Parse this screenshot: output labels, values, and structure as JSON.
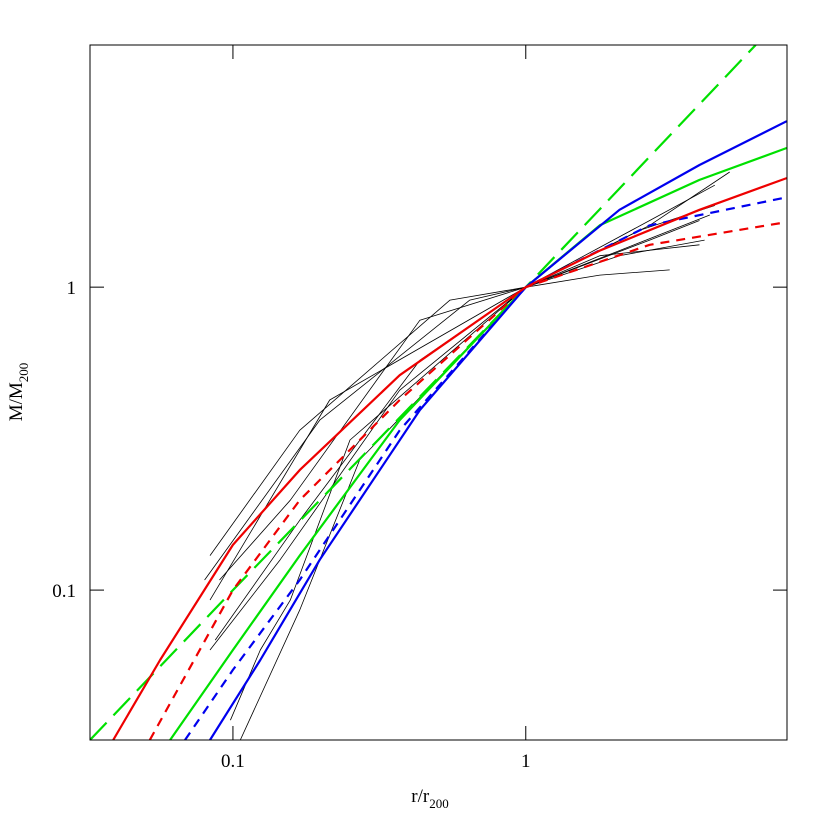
{
  "chart_data": {
    "type": "line",
    "x_label": "r/r",
    "x_label_sub": "200",
    "y_label": "M/M",
    "y_label_sub": "200",
    "xscale": "log",
    "yscale": "log",
    "grid": false,
    "xlim": [
      0.0325,
      7.8
    ],
    "ylim": [
      0.032,
      6.3
    ],
    "xticks": [
      0.1,
      1
    ],
    "yticks": [
      0.1,
      1
    ],
    "series": [
      {
        "color": "#000000",
        "style": "solid",
        "width": 0.8,
        "x": [
          0.0835,
          0.169,
          0.551,
          1,
          1.79,
          3.1
        ],
        "y": [
          0.13,
          0.337,
          0.906,
          1,
          1.096,
          1.14
        ]
      },
      {
        "color": "#000000",
        "style": "solid",
        "width": 0.8,
        "x": [
          0.08,
          0.198,
          0.644,
          1,
          2.09,
          4.08
        ],
        "y": [
          0.108,
          0.364,
          0.906,
          1,
          1.27,
          1.43
        ]
      },
      {
        "color": "#000000",
        "style": "solid",
        "width": 0.8,
        "x": [
          0.0835,
          0.214,
          1,
          2.65,
          4.97
        ],
        "y": [
          0.0927,
          0.424,
          1,
          1.6,
          2.4
        ]
      },
      {
        "color": "#000000",
        "style": "solid",
        "width": 0.8,
        "x": [
          0.106,
          0.169,
          0.271,
          1,
          2.45,
          4.42
        ],
        "y": [
          0.032,
          0.0859,
          0.269,
          1,
          1.54,
          1.86
        ]
      },
      {
        "color": "#000000",
        "style": "solid",
        "width": 0.8,
        "x": [
          0.098,
          0.124,
          0.157,
          0.251,
          1,
          2.65,
          4.42
        ],
        "y": [
          0.0372,
          0.0634,
          0.0927,
          0.313,
          1,
          1.66,
          2.17
        ]
      },
      {
        "color": "#000000",
        "style": "solid",
        "width": 0.8,
        "x": [
          0.087,
          0.169,
          0.435,
          1,
          2.09,
          4.25
        ],
        "y": [
          0.0684,
          0.17,
          0.574,
          1,
          1.32,
          1.73
        ]
      },
      {
        "color": "#000000",
        "style": "solid",
        "width": 0.8,
        "x": [
          0.09,
          0.157,
          0.435,
          1,
          1.79,
          3.92
        ],
        "y": [
          0.108,
          0.198,
          0.778,
          1,
          1.27,
          1.38
        ]
      },
      {
        "color": "#000000",
        "style": "solid",
        "width": 0.8,
        "x": [
          0.0835,
          0.145,
          0.371,
          1,
          2.65,
          3.92
        ],
        "y": [
          0.0634,
          0.126,
          0.457,
          1,
          1.43,
          1.66
        ]
      },
      {
        "color": "#00e000",
        "style": "longdash",
        "width": 2.2,
        "x": [
          0.0325,
          0.1,
          1,
          6.1
        ],
        "y": [
          0.032,
          0.1,
          1,
          6.3
        ]
      },
      {
        "color": "#ee0000",
        "style": "dash",
        "width": 2.2,
        "x": [
          0.052,
          0.1,
          0.169,
          0.371,
          1,
          2.65,
          7.78
        ],
        "y": [
          0.032,
          0.1,
          0.198,
          0.424,
          1,
          1.38,
          1.64
        ]
      },
      {
        "color": "#0000ee",
        "style": "dash",
        "width": 2.2,
        "x": [
          0.0686,
          0.1,
          0.169,
          0.371,
          1,
          2.65,
          7.78
        ],
        "y": [
          0.032,
          0.0545,
          0.108,
          0.337,
          1,
          1.6,
          1.98
        ]
      },
      {
        "color": "#00e000",
        "style": "solid",
        "width": 2.2,
        "x": [
          0.061,
          0.1,
          0.169,
          0.371,
          1,
          1.79,
          3.92,
          7.78
        ],
        "y": [
          0.032,
          0.0634,
          0.13,
          0.364,
          1,
          1.6,
          2.26,
          2.88
        ]
      },
      {
        "color": "#0000ee",
        "style": "solid",
        "width": 2.2,
        "x": [
          0.0835,
          0.124,
          0.198,
          0.435,
          1,
          2.09,
          3.92,
          7.78
        ],
        "y": [
          0.032,
          0.0588,
          0.126,
          0.393,
          1,
          1.8,
          2.53,
          3.53
        ]
      },
      {
        "color": "#ee0000",
        "style": "solid",
        "width": 2.2,
        "x": [
          0.039,
          0.0564,
          0.1,
          0.169,
          0.371,
          1,
          1.79,
          3.92,
          7.78
        ],
        "y": [
          0.032,
          0.0588,
          0.141,
          0.249,
          0.512,
          1,
          1.32,
          1.8,
          2.29
        ]
      }
    ]
  }
}
